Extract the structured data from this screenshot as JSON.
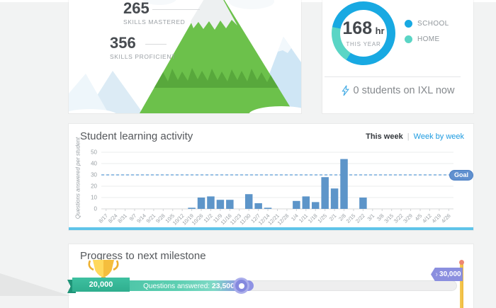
{
  "skills_card": {
    "stats": [
      {
        "value": "265",
        "label": "SKILLS MASTERED"
      },
      {
        "value": "356",
        "label": "SKILLS PROFICIENT"
      }
    ]
  },
  "time_card": {
    "hours_value": "168",
    "hours_unit": "hr",
    "period_label": "THIS YEAR",
    "legend": [
      {
        "label": "SCHOOL",
        "color": "#18a9e2"
      },
      {
        "label": "HOME",
        "color": "#5ad5c5"
      }
    ],
    "status_text": "0 students on IXL now"
  },
  "activity_card": {
    "title": "Student learning activity",
    "toggle_active": "This week",
    "toggle_separator": "|",
    "toggle_link": "Week by week",
    "goal_label": "Goal"
  },
  "milestone_card": {
    "title": "Progress to next milestone",
    "start_label": "20,000",
    "end_label": "30,000",
    "progress_label": "Questions answered:",
    "progress_value": "23,500",
    "flag_chevron": "›"
  },
  "chart_data": [
    {
      "type": "bar",
      "title": "Student learning activity",
      "xlabel": "",
      "ylabel": "Questions answered per student",
      "ylim": [
        0,
        50
      ],
      "yticks": [
        0,
        10,
        20,
        30,
        40,
        50
      ],
      "goal": 30,
      "goal_label": "Goal",
      "grid": true,
      "bar_color": "#5d95c9",
      "goal_color": "#5b9bd5",
      "categories": [
        "8/17",
        "8/24",
        "8/31",
        "9/7",
        "9/14",
        "9/21",
        "9/28",
        "10/5",
        "10/12",
        "10/19",
        "10/26",
        "11/2",
        "11/9",
        "11/16",
        "11/23",
        "11/30",
        "12/7",
        "12/14",
        "12/21",
        "12/28",
        "1/4",
        "1/11",
        "1/18",
        "1/25",
        "2/1",
        "2/8",
        "2/15",
        "2/22",
        "3/1",
        "3/8",
        "3/15",
        "3/22",
        "3/29",
        "4/5",
        "4/12",
        "4/19",
        "4/26"
      ],
      "values": [
        0,
        0,
        0,
        0,
        0,
        0,
        0,
        0,
        0,
        1,
        10,
        11,
        8,
        8,
        0,
        13,
        5,
        1,
        0,
        0,
        7,
        11,
        6,
        28,
        18,
        44,
        0,
        10,
        0,
        0,
        0,
        0,
        0,
        0,
        0,
        0,
        0
      ]
    },
    {
      "type": "pie",
      "title": "168 hr THIS YEAR",
      "center_value": "168 hr",
      "center_sub": "THIS YEAR",
      "donut_start_deg": 213,
      "series": [
        {
          "name": "SCHOOL",
          "pct": 81,
          "color": "#18a9e2"
        },
        {
          "name": "HOME",
          "pct": 19,
          "color": "#5ad5c5"
        }
      ],
      "legend_position": "right"
    },
    {
      "type": "bar",
      "title": "Progress to next milestone",
      "categories": [
        "milestone progress"
      ],
      "values": [
        23500
      ],
      "xlim": [
        20000,
        30000
      ],
      "annotation": "Questions answered: 23,500"
    }
  ]
}
